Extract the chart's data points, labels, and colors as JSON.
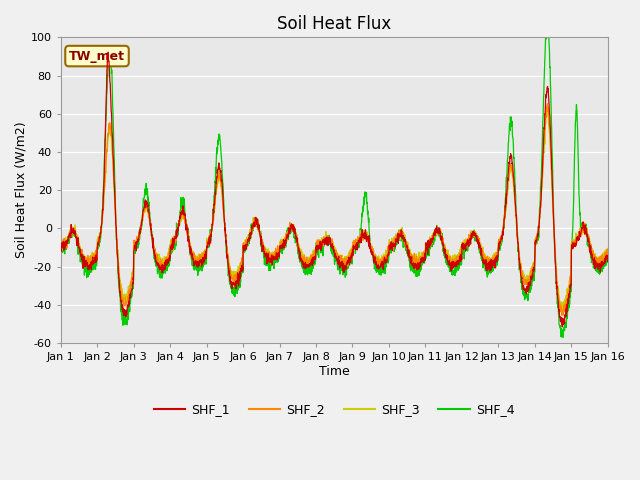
{
  "title": "Soil Heat Flux",
  "xlabel": "Time",
  "ylabel": "Soil Heat Flux (W/m2)",
  "ylim": [
    -60,
    100
  ],
  "xlim": [
    0,
    15
  ],
  "xtick_labels": [
    "Jan 1",
    "Jan 2",
    "Jan 3",
    "Jan 4",
    "Jan 5",
    "Jan 6",
    "Jan 7",
    "Jan 8",
    "Jan 9",
    "Jan 10",
    "Jan 11",
    "Jan 12",
    "Jan 13",
    "Jan 14",
    "Jan 15",
    "Jan 16"
  ],
  "annotation": "TW_met",
  "legend_labels": [
    "SHF_1",
    "SHF_2",
    "SHF_3",
    "SHF_4"
  ],
  "colors": [
    "#cc0000",
    "#ff8800",
    "#cccc00",
    "#00cc00"
  ],
  "background_color": "#e8e8e8",
  "fig_background": "#f0f0f0",
  "title_fontsize": 12,
  "label_fontsize": 9,
  "tick_fontsize": 8,
  "yticks": [
    -60,
    -40,
    -20,
    0,
    20,
    40,
    60,
    80,
    100
  ],
  "linewidth": 0.9
}
